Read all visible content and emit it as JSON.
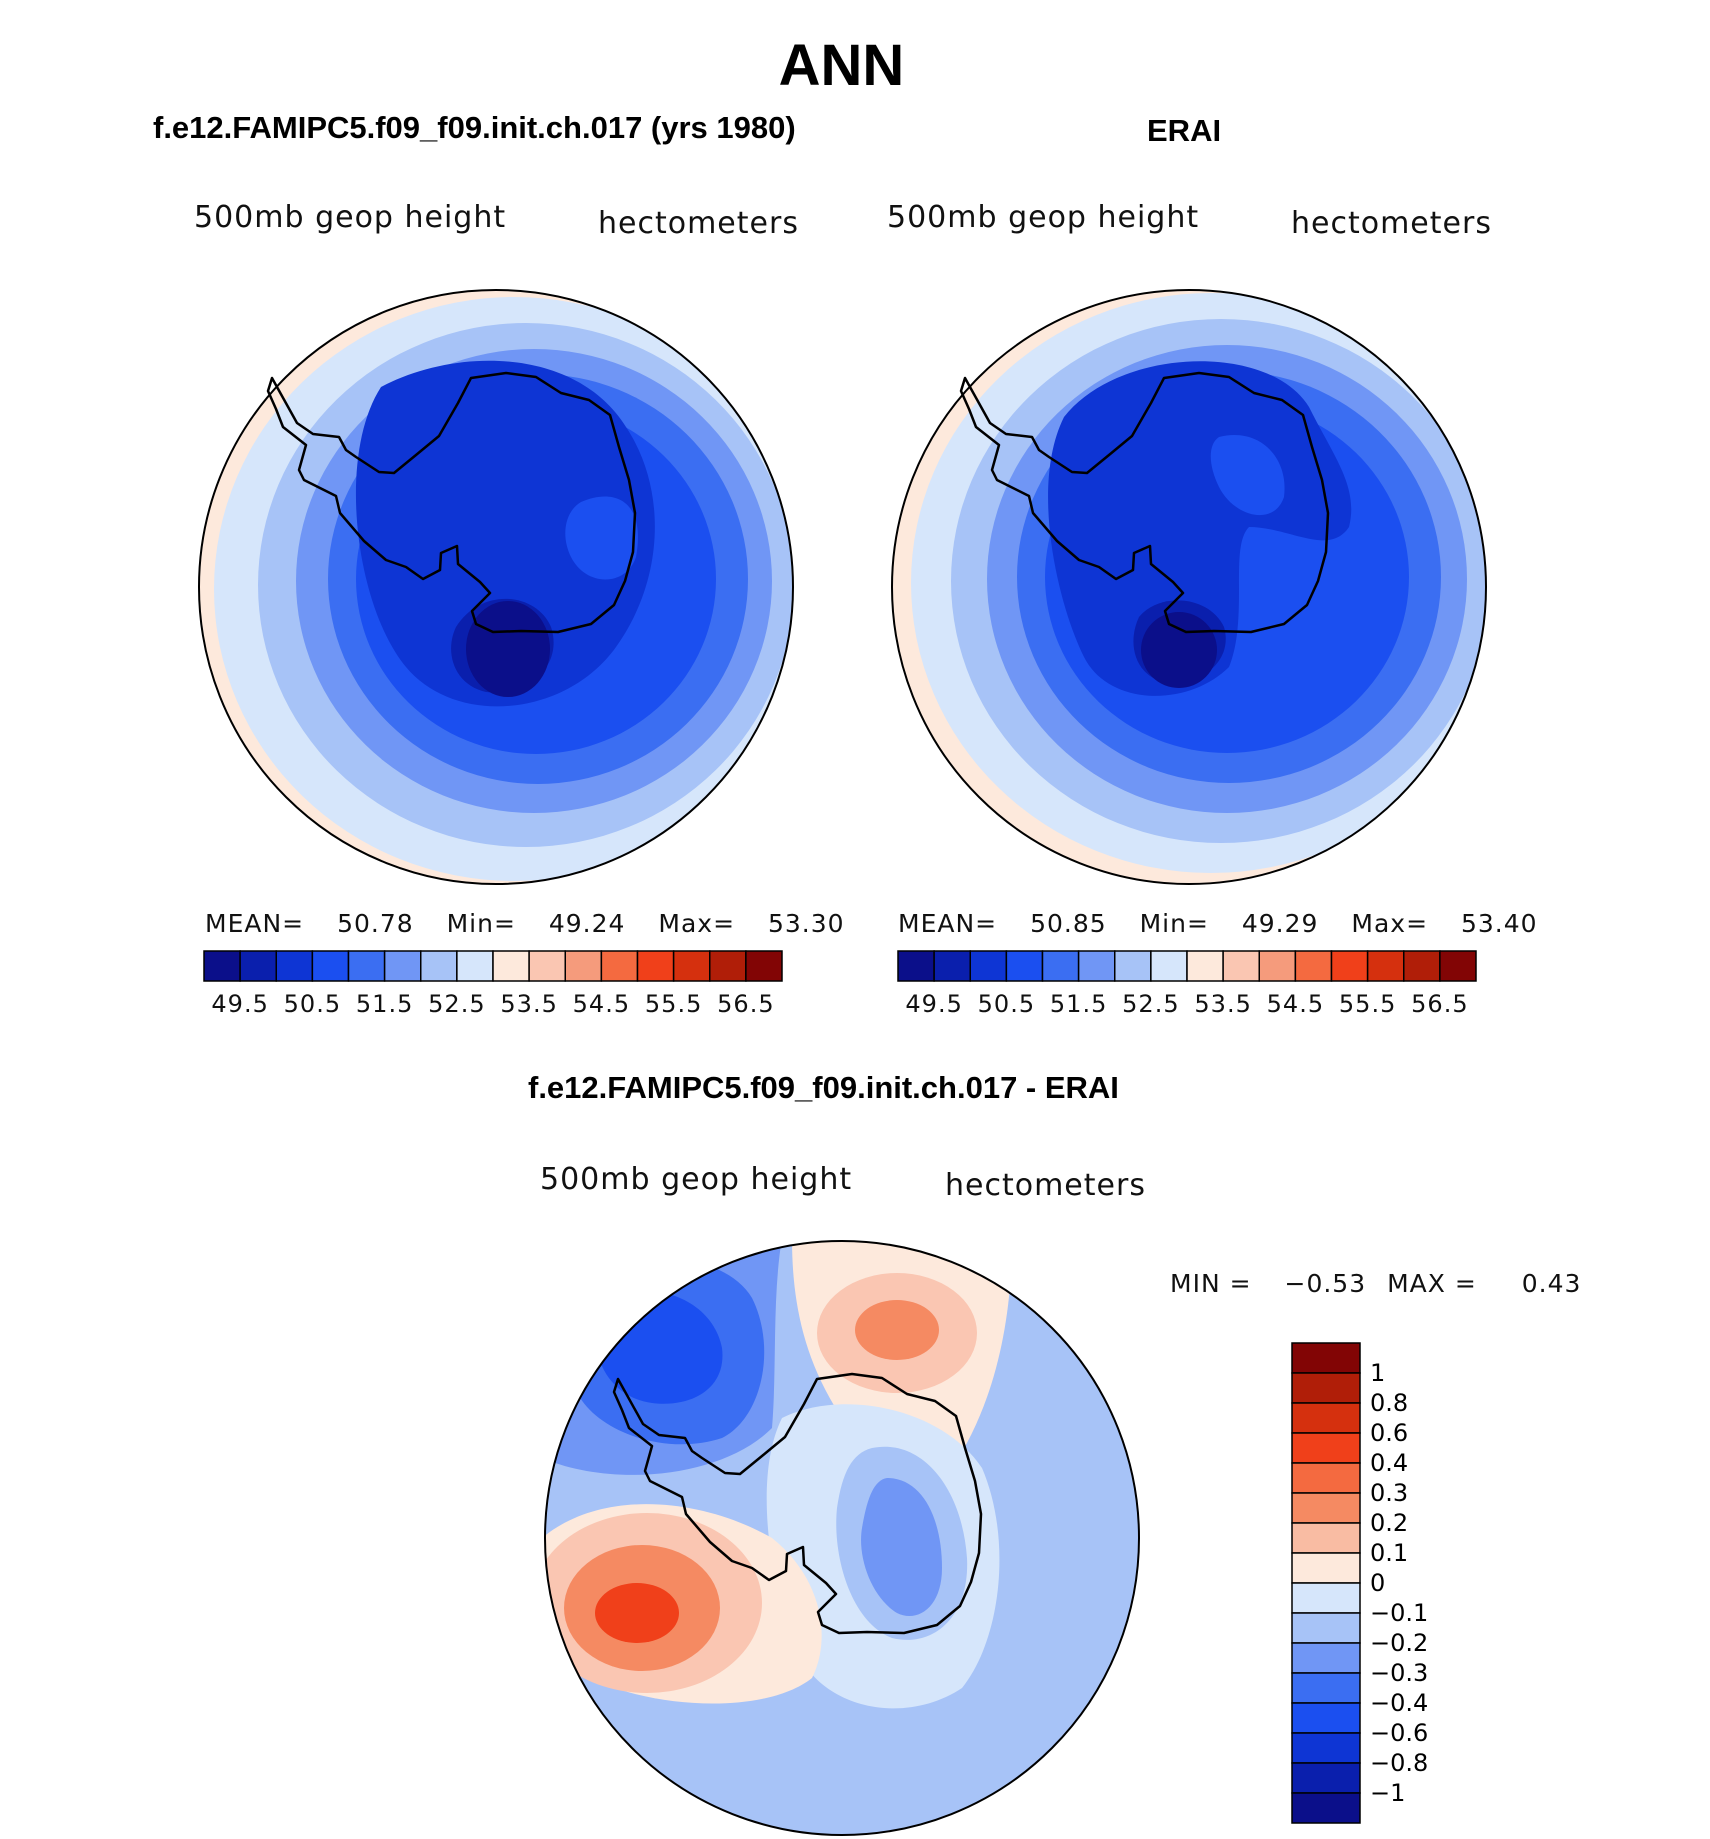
{
  "title": "ANN",
  "panels": {
    "model": {
      "header": "f.e12.FAMIPC5.f09_f09.init.ch.017 (yrs 1980)",
      "variable": "500mb geop height",
      "units": "hectometers",
      "stats": {
        "mean_label": "MEAN=",
        "mean": "50.78",
        "min_label": "Min=",
        "min": "49.24",
        "max_label": "Max=",
        "max": "53.30"
      }
    },
    "obs": {
      "header": "ERAI",
      "variable": "500mb geop height",
      "units": "hectometers",
      "stats": {
        "mean_label": "MEAN=",
        "mean": "50.85",
        "min_label": "Min=",
        "min": "49.29",
        "max_label": "Max=",
        "max": "53.40"
      }
    },
    "diff": {
      "header": "f.e12.FAMIPC5.f09_f09.init.ch.017 - ERAI",
      "variable": "500mb geop height",
      "units": "hectometers",
      "minmax": {
        "min_label": "MIN =",
        "min": "−0.53",
        "max_label": "MAX =",
        "max": "0.43"
      }
    }
  },
  "colorbar_main": {
    "colors": [
      "#0b0f8a",
      "#0a1fad",
      "#0e35d4",
      "#1b4ff0",
      "#3b6ef2",
      "#7096f5",
      "#a7c3f7",
      "#d6e6fb",
      "#fde9dc",
      "#fac6b2",
      "#f59b7c",
      "#f46a40",
      "#f0401a",
      "#d5300e",
      "#b01e08",
      "#820505"
    ],
    "labels": [
      "49.5",
      "50.5",
      "51.5",
      "52.5",
      "53.5",
      "54.5",
      "55.5",
      "56.5"
    ]
  },
  "colorbar_diff": {
    "colors": [
      "#820505",
      "#b01e08",
      "#d5300e",
      "#f0401a",
      "#f46a40",
      "#f58a62",
      "#f9bca3",
      "#fde9dc",
      "#d6e6fb",
      "#a7c3f7",
      "#7096f5",
      "#3b6ef2",
      "#1b4ff0",
      "#0e35d4",
      "#0a1fad",
      "#0b0f8a"
    ],
    "labels": [
      "1",
      "0.8",
      "0.6",
      "0.4",
      "0.3",
      "0.2",
      "0.1",
      "0",
      "−0.1",
      "−0.2",
      "−0.3",
      "−0.4",
      "−0.6",
      "−0.8",
      "−1"
    ]
  },
  "map_colors": {
    "c_d1": "#0b0f8a",
    "c_d2": "#0a1fad",
    "c_d3": "#0e35d4",
    "c_d4": "#1b4ff0",
    "c_d5": "#3b6ef2",
    "c_d6": "#7096f5",
    "c_d7": "#a7c3f7",
    "c_d8": "#d6e6fb",
    "c_w1": "#fde9dc",
    "c_w2": "#fac6b2",
    "c_w3": "#f58a62",
    "c_w4": "#f0401a"
  }
}
